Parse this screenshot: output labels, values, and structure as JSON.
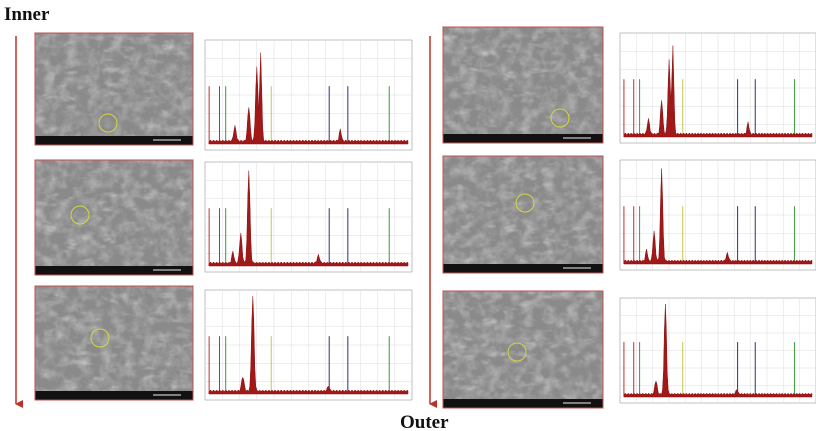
{
  "labels": {
    "inner": "Inner",
    "outer": "Outer"
  }
}
